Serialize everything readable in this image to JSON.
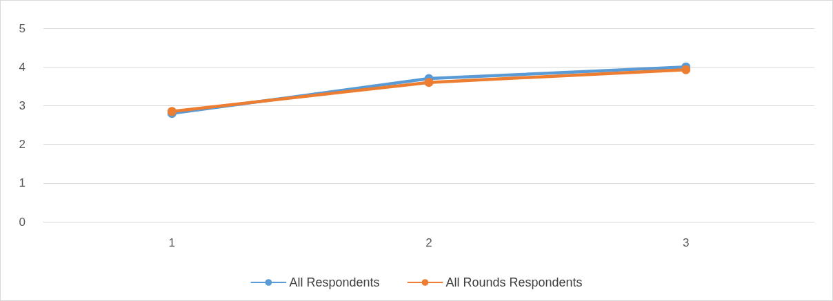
{
  "chart_data": {
    "type": "line",
    "categories": [
      "1",
      "2",
      "3"
    ],
    "series": [
      {
        "name": "All Respondents",
        "color": "#5b9bd5",
        "values": [
          2.8,
          3.7,
          4.0
        ]
      },
      {
        "name": "All Rounds Respondents",
        "color": "#ed7d31",
        "values": [
          2.85,
          3.6,
          3.93
        ]
      }
    ],
    "ylim": [
      0,
      5
    ],
    "yticks": [
      0,
      1,
      2,
      3,
      4,
      5
    ],
    "grid": "y",
    "legend": "bottom",
    "marker": "circle",
    "line_style": "solid"
  }
}
